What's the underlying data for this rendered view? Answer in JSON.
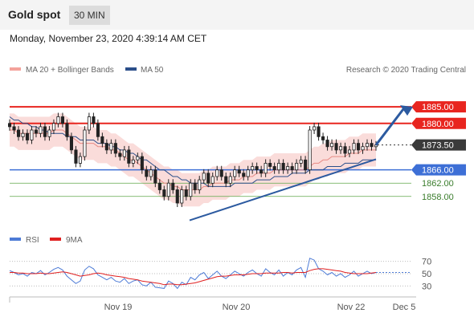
{
  "header": {
    "title": "Gold spot",
    "timeframe": "30 MIN"
  },
  "datetime": "Monday, November 23, 2020 4:39:14 AM CET",
  "copyright": "Research © 2020 Trading Central",
  "colors": {
    "resistance": "#e8251f",
    "support": "#3d6fd6",
    "minor": "#5fa84a",
    "bands": "#f7c9c6",
    "ma50": "#2b4f8a",
    "rsi": "#4d7bd6",
    "rsi_ma": "#e02020",
    "trend": "#2c5aa0"
  },
  "chart_data": [
    {
      "type": "candlestick",
      "legend": [
        "MA 20 + Bollinger Bands",
        "MA 50"
      ],
      "ylim": [
        1849,
        1893
      ],
      "x_ticks": [
        "Nov 19",
        "Nov 20",
        "Nov 22",
        "Dec 5"
      ],
      "levels": [
        {
          "value": 1885.0,
          "label": "1885.00",
          "kind": "resistance"
        },
        {
          "value": 1880.0,
          "label": "1880.00",
          "kind": "resistance"
        },
        {
          "value": 1873.5,
          "label": "1873.50",
          "kind": "last"
        },
        {
          "value": 1866.0,
          "label": "1866.00",
          "kind": "support"
        },
        {
          "value": 1862.0,
          "label": "1862.00",
          "kind": "minor"
        },
        {
          "value": 1858.0,
          "label": "1858.00",
          "kind": "minor"
        }
      ],
      "close": [
        1879,
        1878,
        1876,
        1877,
        1875,
        1878,
        1877,
        1879,
        1876,
        1878,
        1880,
        1882,
        1880,
        1876,
        1872,
        1868,
        1870,
        1878,
        1882,
        1880,
        1876,
        1874,
        1872,
        1874,
        1871,
        1870,
        1872,
        1868,
        1869,
        1870,
        1866,
        1864,
        1866,
        1862,
        1860,
        1858,
        1862,
        1860,
        1856,
        1860,
        1858,
        1862,
        1860,
        1863,
        1865,
        1862,
        1864,
        1866,
        1864,
        1862,
        1864,
        1866,
        1865,
        1864,
        1866,
        1867,
        1866,
        1865,
        1868,
        1867,
        1866,
        1868,
        1866,
        1867,
        1866,
        1868,
        1869,
        1866,
        1878,
        1879,
        1876,
        1875,
        1873,
        1874,
        1872,
        1873,
        1871,
        1872,
        1874,
        1872,
        1873,
        1874,
        1873,
        1873.5
      ],
      "ma20": [
        1878,
        1878,
        1877,
        1877,
        1877,
        1877,
        1877,
        1877,
        1877,
        1877,
        1878,
        1878,
        1878,
        1877,
        1876,
        1875,
        1874,
        1874,
        1874,
        1874,
        1873,
        1873,
        1873,
        1872,
        1872,
        1871,
        1870,
        1869,
        1869,
        1868,
        1867,
        1866,
        1865,
        1864,
        1863,
        1862,
        1862,
        1861,
        1861,
        1860,
        1860,
        1860,
        1860,
        1860,
        1861,
        1861,
        1862,
        1862,
        1862,
        1862,
        1863,
        1863,
        1863,
        1864,
        1864,
        1864,
        1865,
        1865,
        1865,
        1865,
        1866,
        1866,
        1866,
        1866,
        1866,
        1866,
        1866,
        1866,
        1867,
        1868,
        1868,
        1869,
        1869,
        1870,
        1870,
        1870,
        1870,
        1871,
        1871,
        1871,
        1872,
        1872,
        1872,
        1872
      ],
      "ma50": [
        1882,
        1881,
        1881,
        1880,
        1880,
        1879,
        1879,
        1878,
        1878,
        1877,
        1877,
        1877,
        1877,
        1876,
        1876,
        1876,
        1875,
        1875,
        1875,
        1875,
        1874,
        1874,
        1874,
        1873,
        1873,
        1872,
        1872,
        1871,
        1871,
        1870,
        1869,
        1869,
        1868,
        1867,
        1866,
        1866,
        1865,
        1864,
        1864,
        1863,
        1863,
        1862,
        1862,
        1862,
        1862,
        1861,
        1861,
        1861,
        1861,
        1861,
        1861,
        1862,
        1862,
        1862,
        1862,
        1862,
        1863,
        1863,
        1863,
        1863,
        1864,
        1864,
        1864,
        1864,
        1865,
        1865,
        1865,
        1865,
        1866,
        1866,
        1866,
        1866,
        1867,
        1867,
        1867,
        1867,
        1868,
        1868,
        1868,
        1868,
        1869,
        1869,
        1869,
        1869
      ],
      "band_width": 5
    },
    {
      "type": "line",
      "legend": [
        "RSI",
        "9MA"
      ],
      "ylim": [
        20,
        80
      ],
      "y_ticks": [
        "70",
        "50",
        "30"
      ],
      "rsi": [
        55,
        52,
        48,
        50,
        46,
        52,
        50,
        55,
        48,
        52,
        57,
        60,
        56,
        46,
        40,
        34,
        38,
        56,
        62,
        58,
        48,
        44,
        40,
        44,
        38,
        36,
        42,
        34,
        38,
        40,
        32,
        30,
        36,
        28,
        27,
        26,
        38,
        34,
        26,
        36,
        32,
        44,
        40,
        48,
        52,
        42,
        48,
        54,
        46,
        42,
        48,
        54,
        50,
        46,
        52,
        56,
        50,
        46,
        58,
        52,
        48,
        56,
        46,
        52,
        48,
        56,
        60,
        44,
        75,
        72,
        58,
        54,
        48,
        52,
        46,
        50,
        44,
        48,
        54,
        46,
        50,
        54,
        50,
        52
      ],
      "ma9": [
        52,
        52,
        51,
        51,
        50,
        50,
        50,
        51,
        50,
        50,
        51,
        52,
        53,
        52,
        50,
        48,
        46,
        47,
        48,
        50,
        51,
        50,
        48,
        47,
        46,
        45,
        44,
        42,
        41,
        40,
        38,
        37,
        36,
        35,
        34,
        32,
        33,
        33,
        32,
        32,
        33,
        34,
        35,
        37,
        39,
        41,
        43,
        45,
        46,
        46,
        47,
        48,
        48,
        48,
        49,
        50,
        50,
        50,
        51,
        51,
        51,
        51,
        52,
        52,
        51,
        52,
        52,
        52,
        55,
        57,
        58,
        58,
        57,
        56,
        55,
        54,
        52,
        51,
        50,
        50,
        50,
        50,
        51,
        52
      ]
    }
  ]
}
